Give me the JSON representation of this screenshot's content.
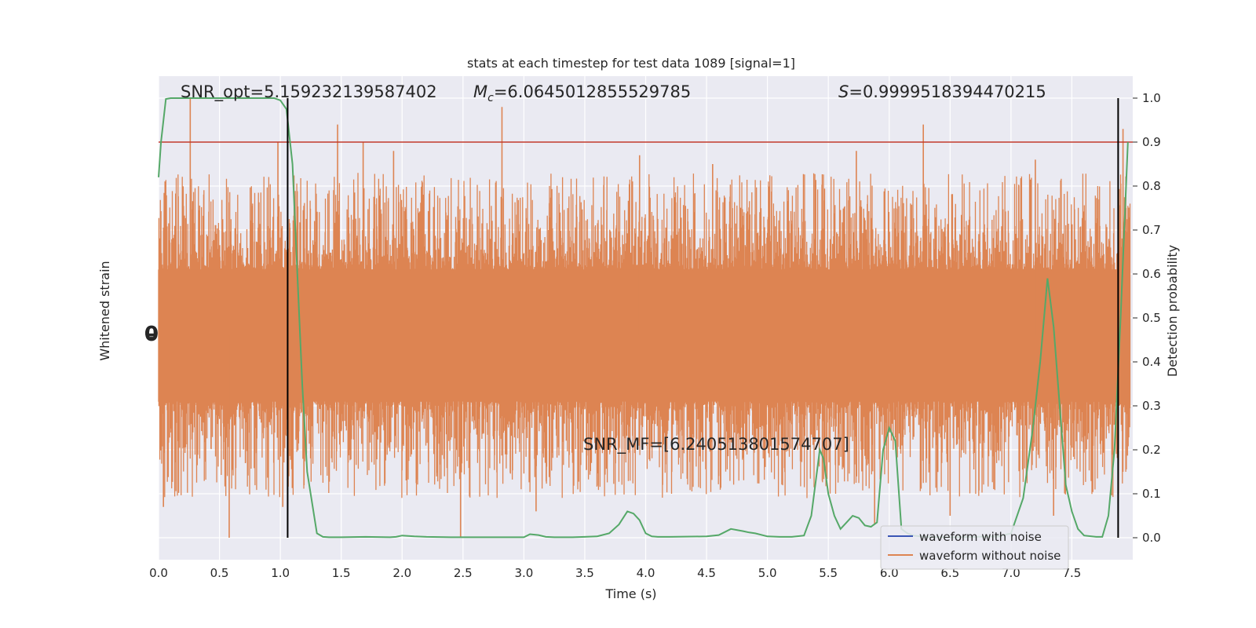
{
  "chart_data": {
    "type": "line",
    "title": "stats at each timestep for test data 1089 [signal=1]",
    "xlabel": "Time (s)",
    "ylabel_left": "Whitened strain",
    "ylabel_right": "Detection probability",
    "xlim": [
      0.0,
      8.0
    ],
    "ylim_right": [
      -0.05,
      1.05
    ],
    "grid": true,
    "x_ticks": [
      "0.0",
      "0.5",
      "1.0",
      "1.5",
      "2.0",
      "2.5",
      "3.0",
      "3.5",
      "4.0",
      "4.5",
      "5.0",
      "5.5",
      "6.0",
      "6.5",
      "7.0",
      "7.5"
    ],
    "y_ticks_right": [
      "0.0",
      "0.1",
      "0.2",
      "0.3",
      "0.4",
      "0.5",
      "0.6",
      "0.7",
      "0.8",
      "0.9",
      "1.0"
    ],
    "left_axis_tick_labels_overlapping": "-0.0",
    "annotations": {
      "snr_opt": "SNR_opt=5.159232139587402",
      "mc_symbol": "M",
      "mc_subscript": "c",
      "mc_value": "=6.0645012855529785",
      "s_symbol": "S",
      "s_value": "=0.9999518394470215",
      "snr_mf": "SNR_MF=[6.240513801574707]"
    },
    "threshold": {
      "value": 0.9,
      "color": "#c0392b"
    },
    "vlines": [
      1.06,
      7.88
    ],
    "legend": {
      "position": "lower-right",
      "entries": [
        {
          "label": "waveform with noise",
          "color": "#3a55b4"
        },
        {
          "label": "waveform without noise",
          "color": "#dd8452"
        }
      ]
    },
    "strain": {
      "name": "waveform without noise",
      "color": "#dd8452",
      "center": 0.46,
      "core_half_width": 0.15,
      "spikes_up": [
        {
          "x": 0.26,
          "y": 1.0
        },
        {
          "x": 0.98,
          "y": 0.9
        },
        {
          "x": 1.47,
          "y": 0.94
        },
        {
          "x": 1.68,
          "y": 0.9
        },
        {
          "x": 1.93,
          "y": 0.88
        },
        {
          "x": 2.82,
          "y": 0.98
        },
        {
          "x": 3.95,
          "y": 0.87
        },
        {
          "x": 4.55,
          "y": 0.85
        },
        {
          "x": 5.73,
          "y": 0.88
        },
        {
          "x": 6.28,
          "y": 0.94
        },
        {
          "x": 7.2,
          "y": 0.86
        },
        {
          "x": 7.92,
          "y": 0.93
        }
      ],
      "spikes_down": [
        {
          "x": 0.04,
          "y": 0.07
        },
        {
          "x": 0.58,
          "y": 0.0
        },
        {
          "x": 1.02,
          "y": 0.07
        },
        {
          "x": 2.48,
          "y": 0.0
        },
        {
          "x": 3.1,
          "y": 0.06
        },
        {
          "x": 5.88,
          "y": 0.03
        },
        {
          "x": 6.5,
          "y": 0.05
        },
        {
          "x": 7.35,
          "y": 0.05
        }
      ]
    },
    "series": [
      {
        "name": "detection probability",
        "color": "#55a868",
        "x": [
          0.0,
          0.02,
          0.06,
          0.1,
          0.2,
          0.4,
          0.6,
          0.8,
          0.95,
          1.0,
          1.05,
          1.1,
          1.14,
          1.18,
          1.22,
          1.26,
          1.3,
          1.35,
          1.4,
          1.5,
          1.7,
          1.9,
          1.95,
          2.0,
          2.1,
          2.2,
          2.4,
          2.6,
          2.8,
          3.0,
          3.05,
          3.12,
          3.18,
          3.25,
          3.4,
          3.5,
          3.6,
          3.7,
          3.78,
          3.85,
          3.9,
          3.95,
          4.0,
          4.05,
          4.1,
          4.2,
          4.5,
          4.6,
          4.7,
          4.8,
          4.85,
          4.9,
          5.0,
          5.1,
          5.2,
          5.3,
          5.36,
          5.43,
          5.46,
          5.5,
          5.55,
          5.6,
          5.65,
          5.7,
          5.75,
          5.8,
          5.85,
          5.9,
          5.95,
          6.0,
          6.05,
          6.1,
          6.15,
          6.2,
          6.25,
          6.3,
          6.5,
          6.7,
          6.9,
          7.0,
          7.1,
          7.18,
          7.24,
          7.3,
          7.35,
          7.4,
          7.45,
          7.5,
          7.55,
          7.6,
          7.7,
          7.75,
          7.8,
          7.85,
          7.9,
          7.96
        ],
        "values": [
          0.82,
          0.9,
          0.998,
          1.0,
          1.0,
          1.0,
          1.0,
          1.0,
          1.0,
          0.995,
          0.975,
          0.85,
          0.6,
          0.35,
          0.15,
          0.08,
          0.01,
          0.002,
          0.001,
          0.001,
          0.002,
          0.001,
          0.002,
          0.005,
          0.003,
          0.002,
          0.001,
          0.001,
          0.001,
          0.001,
          0.008,
          0.006,
          0.002,
          0.001,
          0.001,
          0.002,
          0.003,
          0.01,
          0.03,
          0.06,
          0.055,
          0.04,
          0.01,
          0.003,
          0.002,
          0.002,
          0.003,
          0.006,
          0.02,
          0.015,
          0.012,
          0.01,
          0.003,
          0.002,
          0.002,
          0.005,
          0.05,
          0.2,
          0.18,
          0.1,
          0.05,
          0.02,
          0.035,
          0.05,
          0.045,
          0.028,
          0.025,
          0.035,
          0.2,
          0.25,
          0.22,
          0.02,
          0.01,
          0.005,
          0.003,
          0.002,
          0.001,
          0.002,
          0.003,
          0.01,
          0.09,
          0.25,
          0.4,
          0.59,
          0.48,
          0.3,
          0.12,
          0.06,
          0.02,
          0.005,
          0.002,
          0.002,
          0.05,
          0.2,
          0.5,
          0.9
        ]
      }
    ]
  }
}
